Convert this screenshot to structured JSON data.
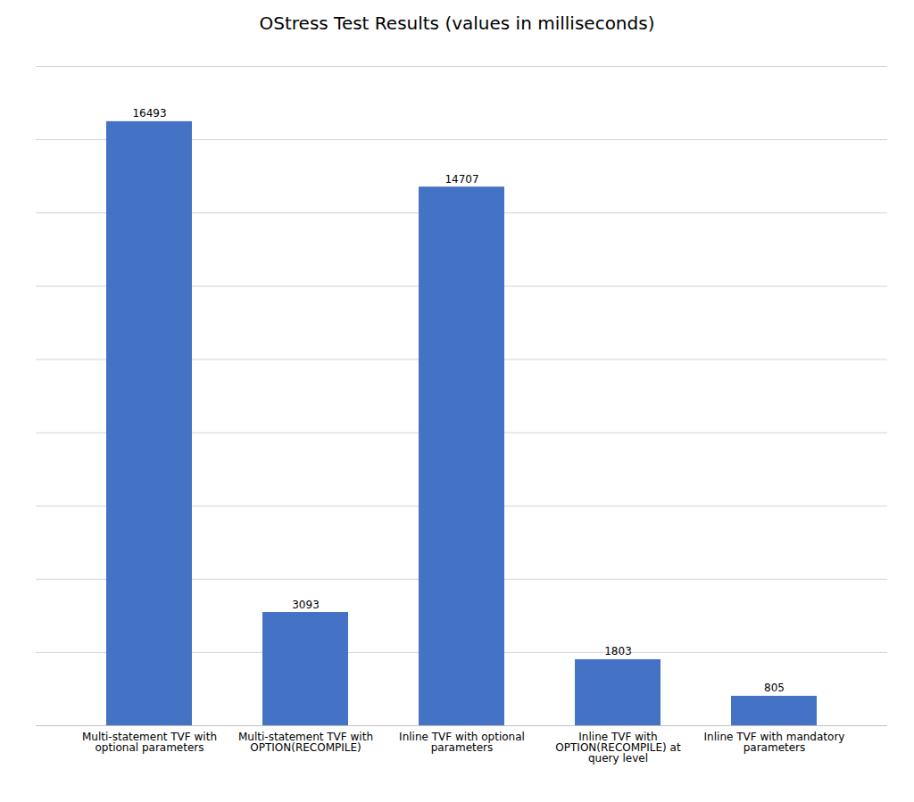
{
  "chart_data": {
    "type": "bar",
    "title": "OStress Test Results (values in milliseconds)",
    "categories": [
      "Multi-statement TVF with\noptional parameters",
      "Multi-statement TVF with\nOPTION(RECOMPILE)",
      "Inline TVF with optional\nparameters",
      "Inline TVF with\nOPTION(RECOMPILE) at\nquery level",
      "Inline TVF with mandatory\nparameters"
    ],
    "values": [
      16493,
      3093,
      14707,
      1803,
      805
    ],
    "color": "#4472C4",
    "ylim": [
      0,
      18000
    ],
    "yticks": [
      0,
      2000,
      4000,
      6000,
      8000,
      10000,
      12000,
      14000,
      16000,
      18000
    ],
    "grid": true,
    "data_labels": true,
    "tick_labels": "x"
  }
}
